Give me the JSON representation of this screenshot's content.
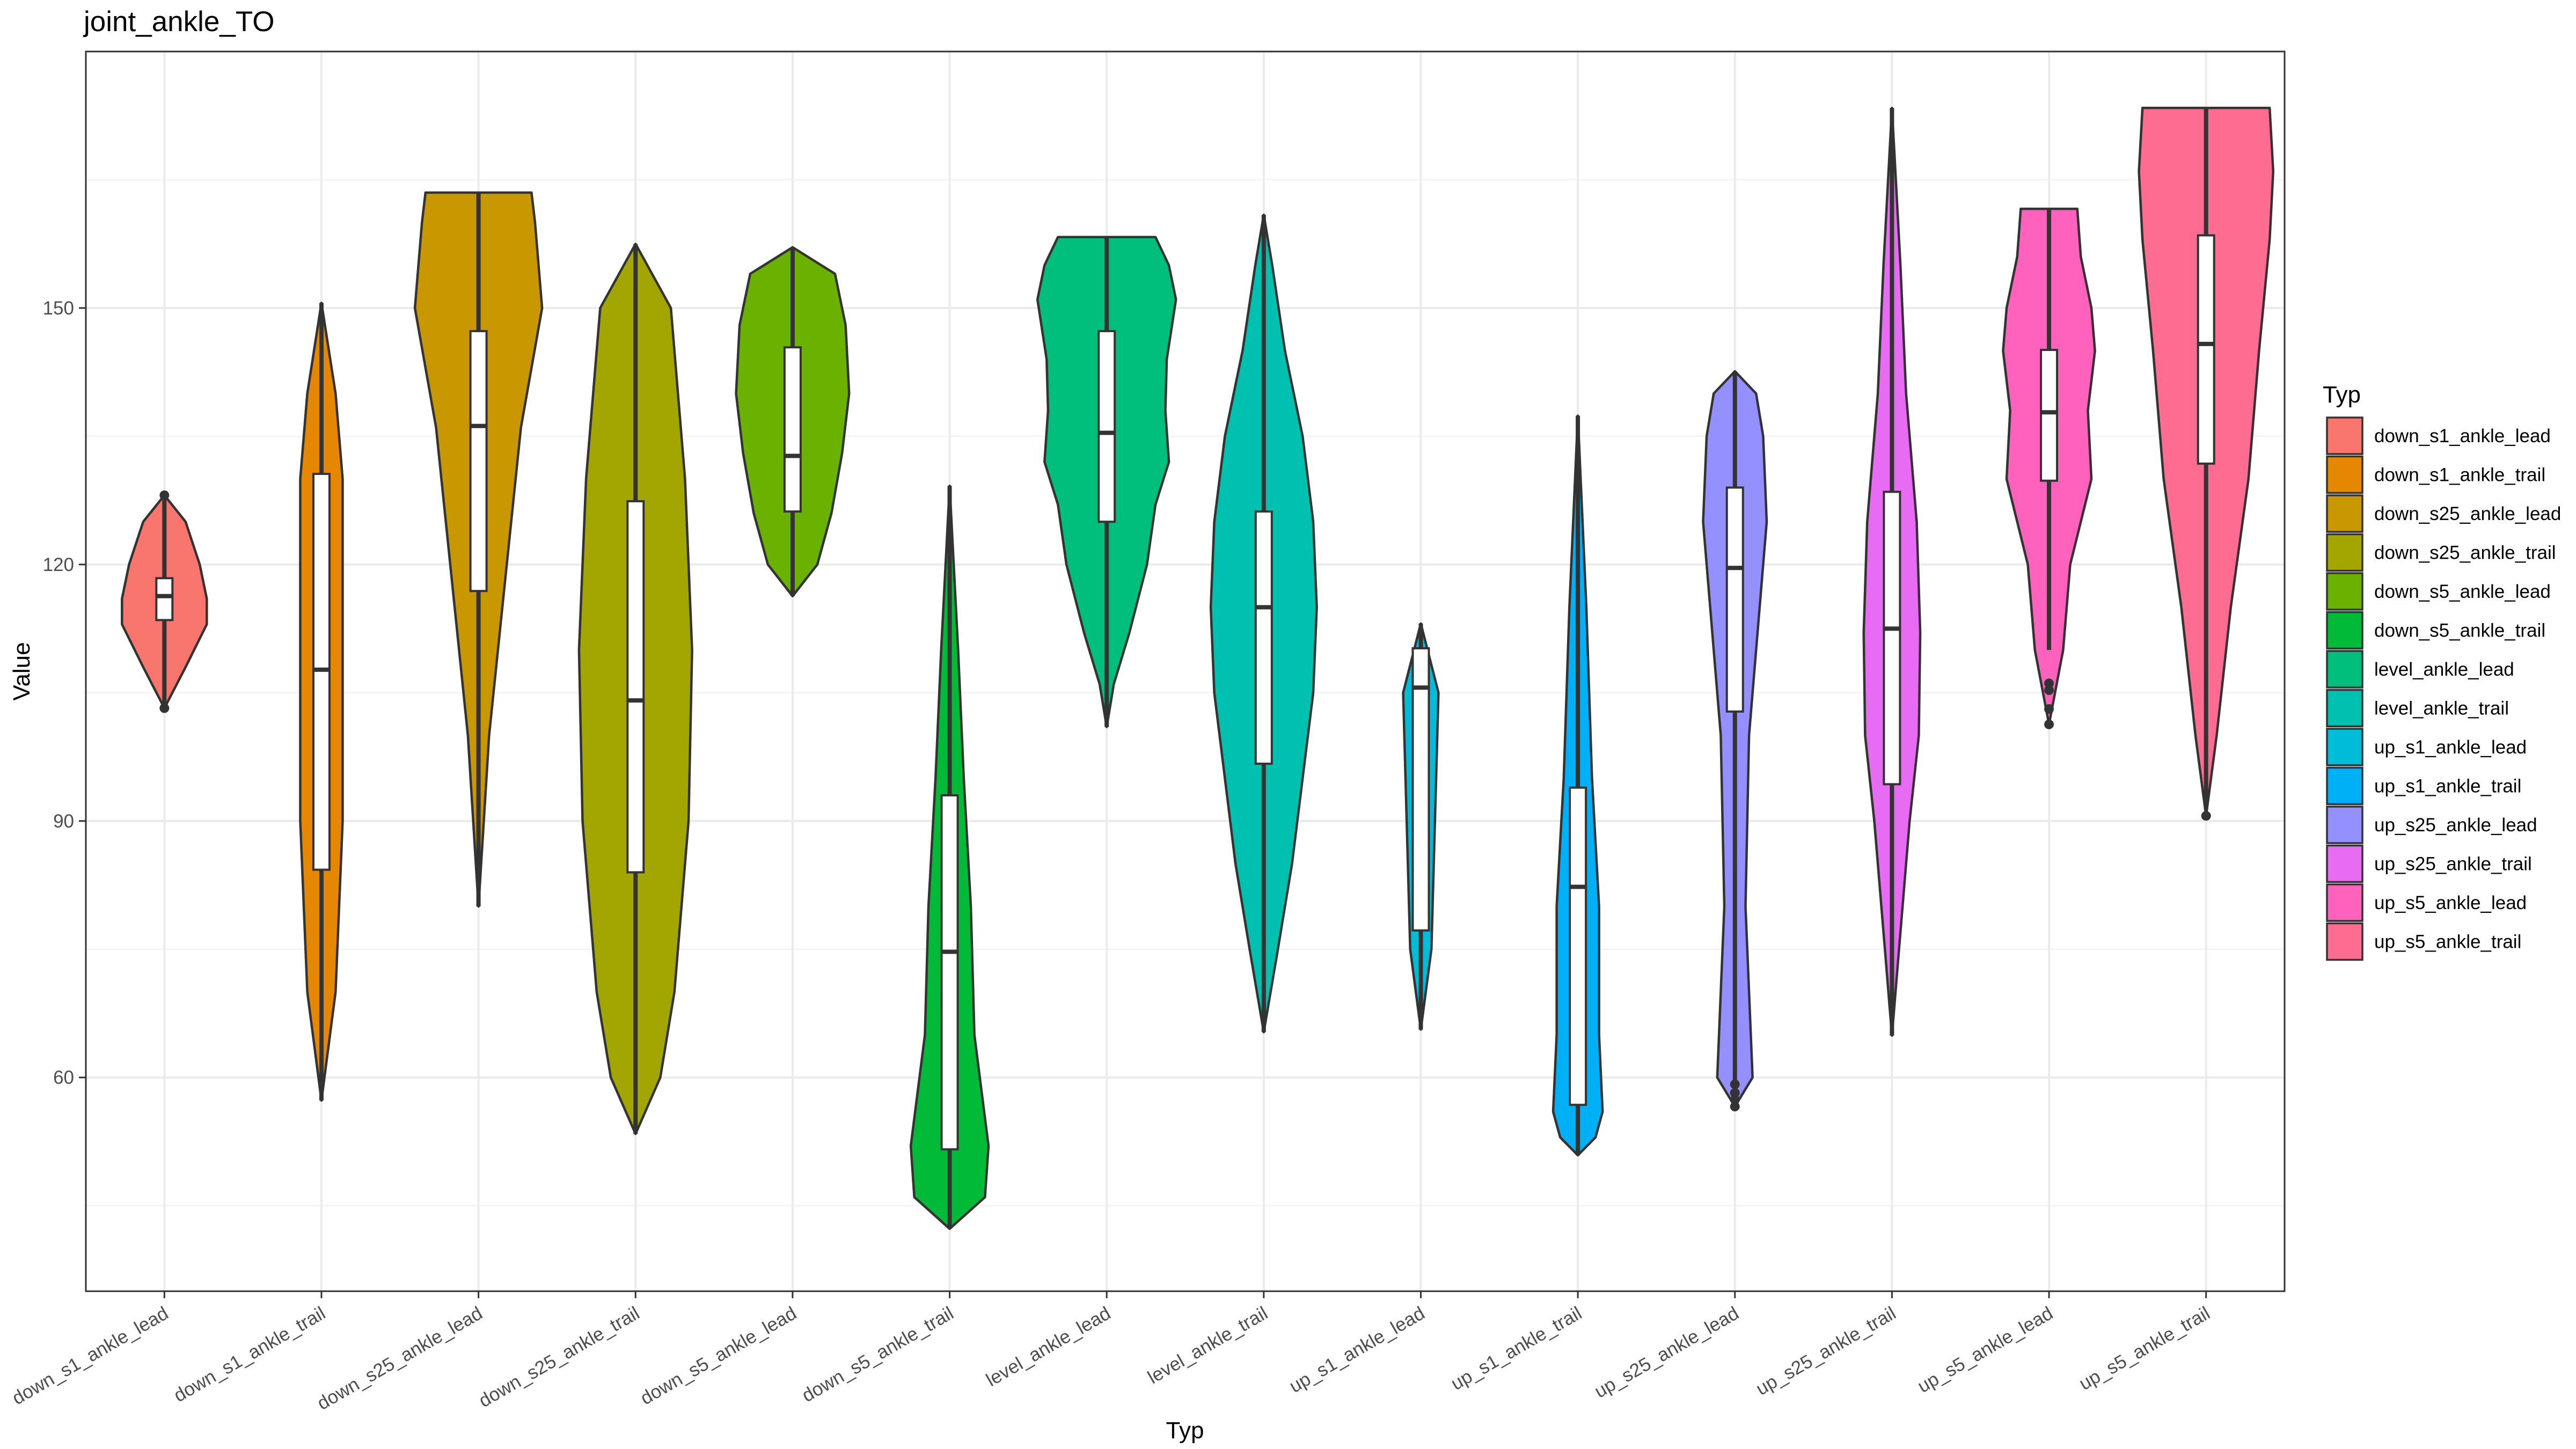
{
  "chart_data": {
    "type": "violin",
    "title": "joint_ankle_TO",
    "xlabel": "Typ",
    "ylabel": "Value",
    "ylim": [
      35,
      180
    ],
    "y_ticks": [
      60,
      90,
      120,
      150
    ],
    "y_tick_labels": [
      "60",
      "90",
      "120",
      "150"
    ],
    "grid": true,
    "legend": {
      "title": "Typ",
      "position": "right"
    },
    "categories": [
      "down_s1_ankle_lead",
      "down_s1_ankle_trail",
      "down_s25_ankle_lead",
      "down_s25_ankle_trail",
      "down_s5_ankle_lead",
      "down_s5_ankle_trail",
      "level_ankle_lead",
      "level_ankle_trail",
      "up_s1_ankle_lead",
      "up_s1_ankle_trail",
      "up_s25_ankle_lead",
      "up_s25_ankle_trail",
      "up_s5_ankle_lead",
      "up_s5_ankle_trail"
    ],
    "series": [
      {
        "name": "down_s1_ankle_lead",
        "color": "#F8766D",
        "box": {
          "min": 113.5,
          "q1": 113.5,
          "median": 116.3,
          "q3": 118.4,
          "max": 118.4
        },
        "whiskers": [
          103.5,
          128.0
        ],
        "outliers": [
          103.2,
          128.1
        ],
        "violin": [
          [
            103.2,
            0.0
          ],
          [
            108,
            0.3
          ],
          [
            113,
            0.6
          ],
          [
            116,
            0.6
          ],
          [
            120,
            0.5
          ],
          [
            125,
            0.3
          ],
          [
            128.1,
            0.0
          ]
        ]
      },
      {
        "name": "down_s1_ankle_trail",
        "color": "#E58700",
        "box": {
          "min": 57.3,
          "q1": 84.3,
          "median": 107.7,
          "q3": 130.6,
          "max": 150.6
        },
        "whiskers": [
          57.3,
          150.6
        ],
        "outliers": [],
        "violin": [
          [
            57.3,
            0.0
          ],
          [
            70,
            0.2
          ],
          [
            90,
            0.3
          ],
          [
            110,
            0.3
          ],
          [
            130,
            0.3
          ],
          [
            140,
            0.2
          ],
          [
            150.6,
            0.0
          ]
        ]
      },
      {
        "name": "down_s25_ankle_lead",
        "color": "#C99800",
        "box": {
          "min": 80.0,
          "q1": 116.9,
          "median": 136.2,
          "q3": 147.3,
          "max": 163.5
        },
        "whiskers": [
          80.0,
          163.5
        ],
        "outliers": [],
        "violin": [
          [
            80.0,
            0.0
          ],
          [
            100,
            0.15
          ],
          [
            120,
            0.4
          ],
          [
            136,
            0.6
          ],
          [
            150,
            0.9
          ],
          [
            160,
            0.8
          ],
          [
            163.5,
            0.75
          ]
        ]
      },
      {
        "name": "down_s25_ankle_trail",
        "color": "#A3A500",
        "box": {
          "min": 53.4,
          "q1": 84.0,
          "median": 104.1,
          "q3": 127.4,
          "max": 157.5
        },
        "whiskers": [
          53.4,
          157.5
        ],
        "outliers": [],
        "violin": [
          [
            53.4,
            0.0
          ],
          [
            60,
            0.35
          ],
          [
            70,
            0.55
          ],
          [
            90,
            0.75
          ],
          [
            110,
            0.8
          ],
          [
            130,
            0.7
          ],
          [
            150,
            0.5
          ],
          [
            157.5,
            0.0
          ]
        ]
      },
      {
        "name": "down_s5_ankle_lead",
        "color": "#6BB100",
        "box": {
          "min": 116.3,
          "q1": 126.2,
          "median": 132.7,
          "q3": 145.4,
          "max": 157.1
        },
        "whiskers": [
          116.3,
          157.1
        ],
        "outliers": [],
        "violin": [
          [
            116.3,
            0.0
          ],
          [
            120,
            0.35
          ],
          [
            126,
            0.55
          ],
          [
            133,
            0.7
          ],
          [
            140,
            0.8
          ],
          [
            148,
            0.75
          ],
          [
            154,
            0.6
          ],
          [
            157.1,
            0.0
          ]
        ]
      },
      {
        "name": "down_s5_ankle_trail",
        "color": "#00BA38",
        "box": {
          "min": 42.3,
          "q1": 51.6,
          "median": 74.7,
          "q3": 93.0,
          "max": 129.2
        },
        "whiskers": [
          42.3,
          129.2
        ],
        "outliers": [],
        "violin": [
          [
            42.3,
            0.0
          ],
          [
            46,
            0.5
          ],
          [
            52,
            0.55
          ],
          [
            65,
            0.35
          ],
          [
            80,
            0.3
          ],
          [
            95,
            0.2
          ],
          [
            110,
            0.12
          ],
          [
            129.2,
            0.0
          ]
        ]
      },
      {
        "name": "level_ankle_lead",
        "color": "#00BF7D",
        "box": {
          "min": 101.0,
          "q1": 125.0,
          "median": 135.4,
          "q3": 147.3,
          "max": 158.3
        },
        "whiskers": [
          101.0,
          158.3
        ],
        "outliers": [],
        "violin": [
          [
            101.0,
            0.0
          ],
          [
            106,
            0.1
          ],
          [
            112,
            0.32
          ],
          [
            120,
            0.57
          ],
          [
            127,
            0.69
          ],
          [
            132,
            0.88
          ],
          [
            138,
            0.83
          ],
          [
            144,
            0.85
          ],
          [
            151,
            0.98
          ],
          [
            155,
            0.88
          ],
          [
            158.3,
            0.69
          ]
        ]
      },
      {
        "name": "level_ankle_trail",
        "color": "#00C0AF",
        "box": {
          "min": 65.3,
          "q1": 96.7,
          "median": 115.0,
          "q3": 126.2,
          "max": 160.9
        },
        "whiskers": [
          65.3,
          160.9
        ],
        "outliers": [],
        "violin": [
          [
            65.3,
            0.0
          ],
          [
            75,
            0.2
          ],
          [
            85,
            0.4
          ],
          [
            95,
            0.55
          ],
          [
            105,
            0.7
          ],
          [
            115,
            0.75
          ],
          [
            125,
            0.7
          ],
          [
            135,
            0.55
          ],
          [
            145,
            0.3
          ],
          [
            155,
            0.12
          ],
          [
            160.9,
            0.0
          ]
        ]
      },
      {
        "name": "up_s1_ankle_lead",
        "color": "#00BCD8",
        "box": {
          "min": 65.6,
          "q1": 77.2,
          "median": 105.6,
          "q3": 110.2,
          "max": 113.1
        },
        "whiskers": [
          65.6,
          113.1
        ],
        "outliers": [],
        "violin": [
          [
            65.6,
            0.0
          ],
          [
            75,
            0.15
          ],
          [
            90,
            0.2
          ],
          [
            105,
            0.25
          ],
          [
            113.1,
            0.0
          ]
        ]
      },
      {
        "name": "up_s1_ankle_trail",
        "color": "#00B0F6",
        "box": {
          "min": 50.9,
          "q1": 56.8,
          "median": 82.3,
          "q3": 93.9,
          "max": 137.4
        },
        "whiskers": [
          50.9,
          137.4
        ],
        "outliers": [],
        "violin": [
          [
            50.9,
            0.0
          ],
          [
            53,
            0.25
          ],
          [
            56,
            0.35
          ],
          [
            65,
            0.3
          ],
          [
            80,
            0.3
          ],
          [
            95,
            0.2
          ],
          [
            115,
            0.12
          ],
          [
            137.4,
            0.0
          ]
        ]
      },
      {
        "name": "up_s25_ankle_lead",
        "color": "#9590FF",
        "box": {
          "min": 56.9,
          "q1": 102.8,
          "median": 119.6,
          "q3": 129.0,
          "max": 142.6
        },
        "whiskers": [
          56.9,
          142.6
        ],
        "outliers": [
          56.6,
          57.4,
          58.2,
          59.2
        ],
        "violin": [
          [
            56.6,
            0.0
          ],
          [
            60,
            0.25
          ],
          [
            80,
            0.15
          ],
          [
            100,
            0.2
          ],
          [
            115,
            0.35
          ],
          [
            125,
            0.45
          ],
          [
            135,
            0.4
          ],
          [
            140,
            0.3
          ],
          [
            142.6,
            0.0
          ]
        ]
      },
      {
        "name": "up_s25_ankle_trail",
        "color": "#E76BF3",
        "box": {
          "min": 64.9,
          "q1": 94.3,
          "median": 112.5,
          "q3": 128.5,
          "max": 173.4
        },
        "whiskers": [
          64.9,
          173.4
        ],
        "outliers": [],
        "violin": [
          [
            64.9,
            0.0
          ],
          [
            75,
            0.1
          ],
          [
            90,
            0.25
          ],
          [
            100,
            0.38
          ],
          [
            112,
            0.4
          ],
          [
            125,
            0.35
          ],
          [
            140,
            0.2
          ],
          [
            155,
            0.12
          ],
          [
            173.4,
            0.0
          ]
        ]
      },
      {
        "name": "up_s5_ankle_lead",
        "color": "#FF62BC",
        "box": {
          "min": 110.0,
          "q1": 129.8,
          "median": 137.8,
          "q3": 145.1,
          "max": 161.6
        },
        "whiskers": [
          110.0,
          161.6
        ],
        "outliers": [
          101.3,
          103.1,
          105.3,
          106.1
        ],
        "violin": [
          [
            101.3,
            0.0
          ],
          [
            110,
            0.2
          ],
          [
            120,
            0.3
          ],
          [
            130,
            0.6
          ],
          [
            138,
            0.55
          ],
          [
            145,
            0.65
          ],
          [
            150,
            0.6
          ],
          [
            156,
            0.45
          ],
          [
            161.6,
            0.4
          ]
        ]
      },
      {
        "name": "up_s5_ankle_trail",
        "color": "#FF6C91",
        "box": {
          "min": 91.5,
          "q1": 131.8,
          "median": 145.8,
          "q3": 158.5,
          "max": 173.4
        },
        "whiskers": [
          91.5,
          173.4
        ],
        "outliers": [
          90.6
        ],
        "violin": [
          [
            90.6,
            0.0
          ],
          [
            100,
            0.15
          ],
          [
            115,
            0.35
          ],
          [
            130,
            0.6
          ],
          [
            145,
            0.75
          ],
          [
            158,
            0.9
          ],
          [
            166,
            0.95
          ],
          [
            173.4,
            0.9
          ]
        ]
      }
    ]
  }
}
